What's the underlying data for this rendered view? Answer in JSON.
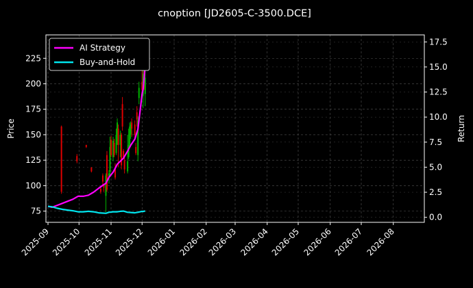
{
  "chart_data": {
    "type": "line",
    "title": "cnoption [JD2605-C-3500.DCE]",
    "ylabel_left": "Price",
    "ylabel_right": "Return",
    "xlim": [
      "2025-08-30",
      "2026-08-31"
    ],
    "ylim_left": [
      64,
      248
    ],
    "ylim_right": [
      -0.5,
      18.2
    ],
    "grid": true,
    "legend_position": "top-left",
    "x_ticks": [
      "2025-09",
      "2025-10",
      "2025-11",
      "2025-12",
      "2026-01",
      "2026-02",
      "2026-03",
      "2026-04",
      "2026-05",
      "2026-06",
      "2026-07",
      "2026-08"
    ],
    "y_ticks_left": [
      "75",
      "100",
      "125",
      "150",
      "175",
      "200",
      "225"
    ],
    "y_ticks_right": [
      "0.0",
      "2.5",
      "5.0",
      "7.5",
      "10.0",
      "12.5",
      "15.0",
      "17.5"
    ],
    "colors": {
      "background": "#000000",
      "up": "#00b400",
      "down": "#e00000",
      "strategy": "#ff00ff",
      "buy_hold": "#00e5ee"
    },
    "series": [
      {
        "name": "AI Strategy",
        "axis": "right",
        "x": [
          "2025-09-01",
          "2025-09-05",
          "2025-09-10",
          "2025-09-15",
          "2025-09-20",
          "2025-09-25",
          "2025-09-30",
          "2025-10-05",
          "2025-10-10",
          "2025-10-15",
          "2025-10-20",
          "2025-10-24",
          "2025-10-27",
          "2025-10-30",
          "2025-11-03",
          "2025-11-07",
          "2025-11-10",
          "2025-11-13",
          "2025-11-17",
          "2025-11-20",
          "2025-11-24",
          "2025-11-27",
          "2025-12-01",
          "2025-12-02",
          "2025-12-03",
          "2025-12-04"
        ],
        "y": [
          1.1,
          1.0,
          1.2,
          1.4,
          1.6,
          1.8,
          2.1,
          2.1,
          2.2,
          2.5,
          2.9,
          3.2,
          3.4,
          4.0,
          4.5,
          5.3,
          5.6,
          5.9,
          6.6,
          7.2,
          7.8,
          8.8,
          12.3,
          12.8,
          13.9,
          15.2
        ]
      },
      {
        "name": "Buy-and-Hold",
        "axis": "right",
        "x": [
          "2025-09-01",
          "2025-09-05",
          "2025-09-10",
          "2025-09-15",
          "2025-09-20",
          "2025-09-25",
          "2025-09-30",
          "2025-10-05",
          "2025-10-10",
          "2025-10-15",
          "2025-10-20",
          "2025-10-24",
          "2025-10-27",
          "2025-10-30",
          "2025-11-03",
          "2025-11-07",
          "2025-11-10",
          "2025-11-13",
          "2025-11-17",
          "2025-11-20",
          "2025-11-24",
          "2025-11-27",
          "2025-12-01",
          "2025-12-02",
          "2025-12-03",
          "2025-12-04"
        ],
        "y": [
          1.1,
          1.05,
          0.9,
          0.8,
          0.72,
          0.65,
          0.55,
          0.55,
          0.6,
          0.55,
          0.45,
          0.42,
          0.4,
          0.5,
          0.55,
          0.55,
          0.6,
          0.62,
          0.5,
          0.48,
          0.45,
          0.5,
          0.6,
          0.58,
          0.62,
          0.6
        ]
      }
    ],
    "candles": [
      {
        "date": "2025-09-14",
        "open": 158,
        "close": 94,
        "high": 159,
        "low": 92
      },
      {
        "date": "2025-09-29",
        "open": 129,
        "close": 124,
        "high": 131,
        "low": 122
      },
      {
        "date": "2025-10-08",
        "open": 140,
        "close": 138,
        "high": 140,
        "low": 137
      },
      {
        "date": "2025-10-13",
        "open": 118,
        "close": 114,
        "high": 118,
        "low": 113
      },
      {
        "date": "2025-10-22",
        "open": 97,
        "close": 94,
        "high": 98,
        "low": 92
      },
      {
        "date": "2025-10-24",
        "open": 110,
        "close": 104,
        "high": 112,
        "low": 100
      },
      {
        "date": "2025-10-25",
        "open": 100,
        "close": 98,
        "high": 102,
        "low": 94
      },
      {
        "date": "2025-10-27",
        "open": 90,
        "close": 110,
        "high": 112,
        "low": 74
      },
      {
        "date": "2025-10-28",
        "open": 130,
        "close": 96,
        "high": 134,
        "low": 94
      },
      {
        "date": "2025-10-30",
        "open": 108,
        "close": 112,
        "high": 115,
        "low": 102
      },
      {
        "date": "2025-10-31",
        "open": 114,
        "close": 138,
        "high": 148,
        "low": 110
      },
      {
        "date": "2025-11-01",
        "open": 145,
        "close": 130,
        "high": 149,
        "low": 128
      },
      {
        "date": "2025-11-03",
        "open": 128,
        "close": 144,
        "high": 148,
        "low": 124
      },
      {
        "date": "2025-11-04",
        "open": 142,
        "close": 130,
        "high": 146,
        "low": 128
      },
      {
        "date": "2025-11-05",
        "open": 118,
        "close": 108,
        "high": 122,
        "low": 106
      },
      {
        "date": "2025-11-06",
        "open": 132,
        "close": 150,
        "high": 156,
        "low": 130
      },
      {
        "date": "2025-11-07",
        "open": 150,
        "close": 162,
        "high": 166,
        "low": 140
      },
      {
        "date": "2025-11-08",
        "open": 156,
        "close": 140,
        "high": 160,
        "low": 118
      },
      {
        "date": "2025-11-10",
        "open": 140,
        "close": 150,
        "high": 154,
        "low": 128
      },
      {
        "date": "2025-11-11",
        "open": 150,
        "close": 120,
        "high": 152,
        "low": 116
      },
      {
        "date": "2025-11-12",
        "open": 180,
        "close": 158,
        "high": 187,
        "low": 154
      },
      {
        "date": "2025-11-13",
        "open": 134,
        "close": 128,
        "high": 136,
        "low": 126
      },
      {
        "date": "2025-11-14",
        "open": 125,
        "close": 116,
        "high": 128,
        "low": 112
      },
      {
        "date": "2025-11-17",
        "open": 114,
        "close": 124,
        "high": 150,
        "low": 112
      },
      {
        "date": "2025-11-18",
        "open": 128,
        "close": 140,
        "high": 156,
        "low": 126
      },
      {
        "date": "2025-11-19",
        "open": 140,
        "close": 158,
        "high": 162,
        "low": 138
      },
      {
        "date": "2025-11-20",
        "open": 150,
        "close": 160,
        "high": 163,
        "low": 146
      },
      {
        "date": "2025-11-21",
        "open": 162,
        "close": 156,
        "high": 166,
        "low": 148
      },
      {
        "date": "2025-11-24",
        "open": 160,
        "close": 150,
        "high": 164,
        "low": 146
      },
      {
        "date": "2025-11-25",
        "open": 138,
        "close": 132,
        "high": 142,
        "low": 130
      },
      {
        "date": "2025-11-26",
        "open": 172,
        "close": 165,
        "high": 178,
        "low": 158
      },
      {
        "date": "2025-11-27",
        "open": 130,
        "close": 164,
        "high": 168,
        "low": 124
      },
      {
        "date": "2025-11-28",
        "open": 186,
        "close": 196,
        "high": 202,
        "low": 180
      },
      {
        "date": "2025-12-01",
        "open": 202,
        "close": 194,
        "high": 218,
        "low": 188
      },
      {
        "date": "2025-12-02",
        "open": 188,
        "close": 210,
        "high": 228,
        "low": 176
      },
      {
        "date": "2025-12-03",
        "open": 212,
        "close": 196,
        "high": 244,
        "low": 194
      },
      {
        "date": "2025-12-04",
        "open": 190,
        "close": 206,
        "high": 214,
        "low": 178
      }
    ]
  }
}
